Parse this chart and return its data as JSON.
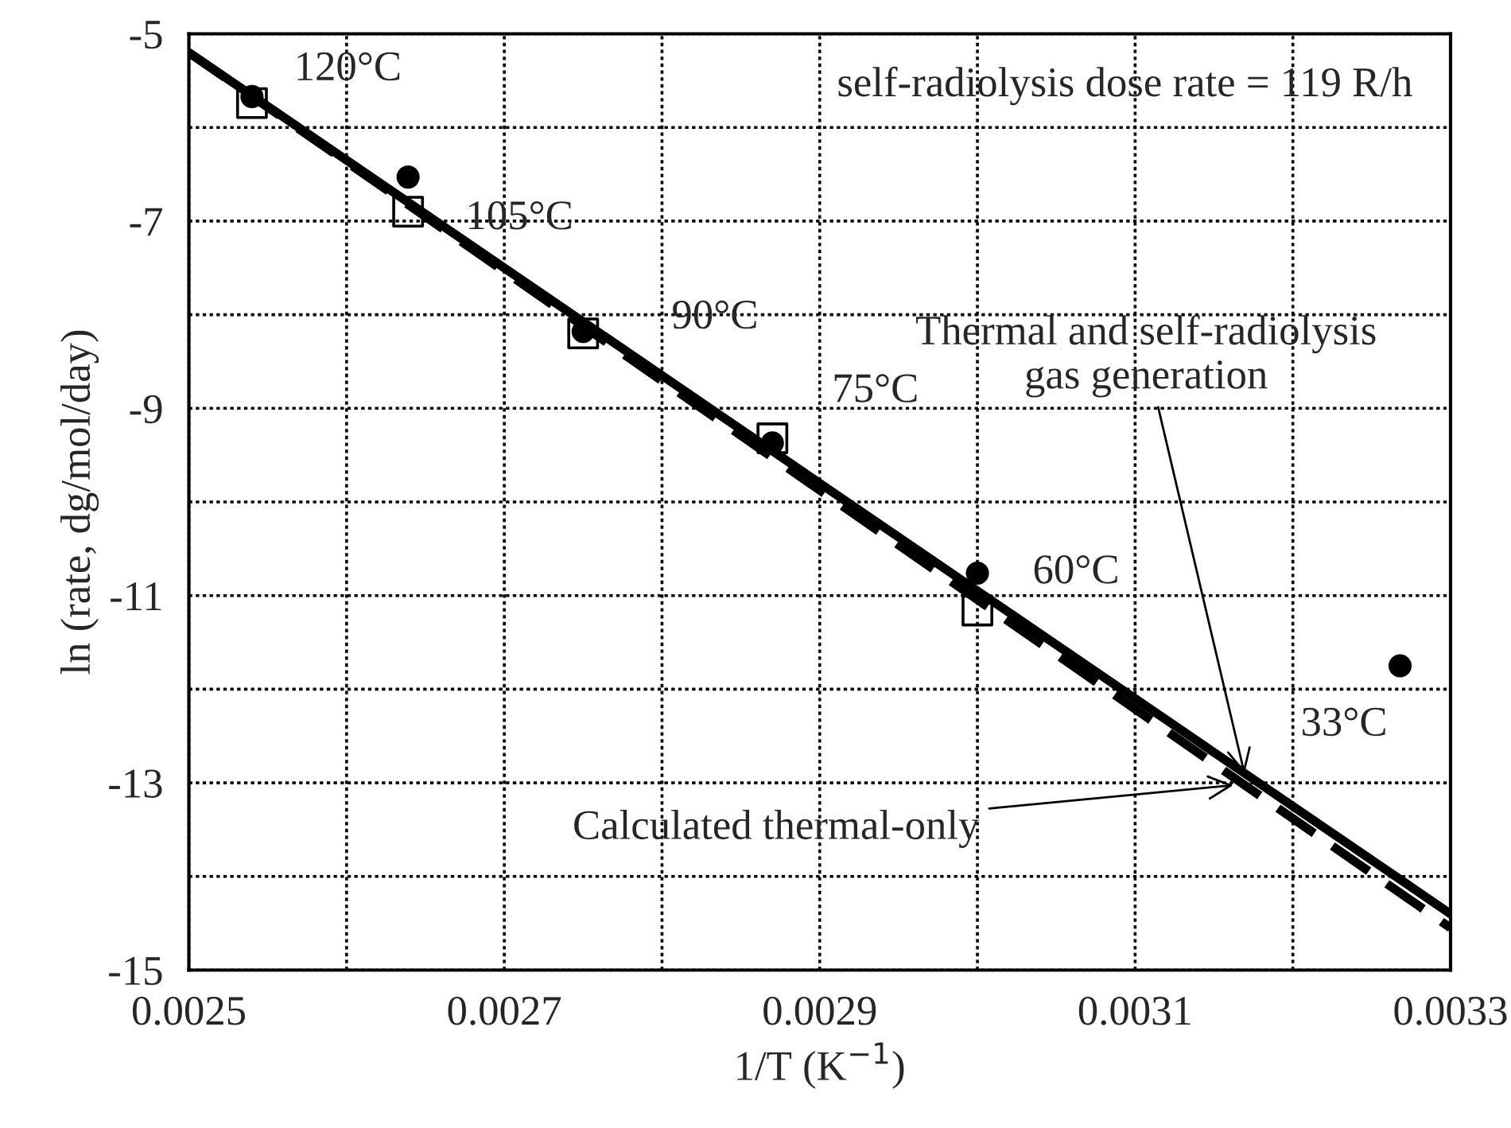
{
  "chart_data": {
    "type": "scatter",
    "xlabel": "1/T (K$^{−1}$)",
    "ylabel": "ln (rate, dg/mol/day)",
    "xlim": [
      0.0025,
      0.0033
    ],
    "ylim": [
      -15,
      -5
    ],
    "xticks": [
      0.0025,
      {
        "value": 0.0026,
        "label": null
      },
      0.0027,
      {
        "value": 0.0028,
        "label": null
      },
      0.0029,
      {
        "value": 0.003,
        "label": null
      },
      0.0031,
      {
        "value": 0.0032,
        "label": null
      },
      0.0033
    ],
    "yticks": [
      -15,
      {
        "value": -14,
        "label": null
      },
      -13,
      {
        "value": -12,
        "label": null
      },
      -11,
      {
        "value": -10,
        "label": null
      },
      -9,
      {
        "value": -8,
        "label": null
      },
      -7,
      {
        "value": -6,
        "label": null
      },
      -5
    ],
    "grid": true,
    "series": [
      {
        "marker": "circle",
        "color": "#000000",
        "x": [
          0.00254,
          0.002639,
          0.00275,
          0.00287,
          0.003,
          0.003268
        ],
        "values": [
          -5.67,
          -6.53,
          -8.18,
          -9.37,
          -10.76,
          -11.75
        ]
      },
      {
        "marker": "square",
        "color": "#000000",
        "x": [
          0.00254,
          0.002639,
          0.00275,
          0.00287,
          0.003
        ],
        "values": [
          -5.74,
          -6.9,
          -8.2,
          -9.32,
          -11.16
        ]
      },
      {
        "type": "line",
        "line_style": "solid",
        "color": "#000000",
        "x": [
          0.0025,
          0.0033
        ],
        "values": [
          -5.2,
          -14.4
        ]
      },
      {
        "type": "line",
        "line_style": "dashed",
        "color": "#000000",
        "x": [
          0.0025,
          0.0033
        ],
        "values": [
          -5.2,
          -14.55
        ]
      }
    ],
    "annotations": [
      "self-radiolysis dose rate = 119 R/h",
      {
        "text": "120°C",
        "x": 0.00254,
        "y": -5.67
      },
      {
        "text": "105°C",
        "x": 0.002639,
        "y": -6.53
      },
      {
        "text": "90°C",
        "x": 0.00275,
        "y": -8.18
      },
      {
        "text": "75°C",
        "x": 0.00287,
        "y": -9.32
      },
      {
        "text": "60°C",
        "x": 0.003,
        "y": -10.76
      },
      {
        "text": "33°C",
        "x": 0.003268,
        "y": -11.75
      },
      {
        "text": "Thermal and self-radiolysis\ngas generation",
        "x": 0.00317,
        "y": -12.95
      },
      {
        "text": "Calculated thermal-only",
        "x": 0.003165,
        "y": -13.02
      }
    ]
  }
}
